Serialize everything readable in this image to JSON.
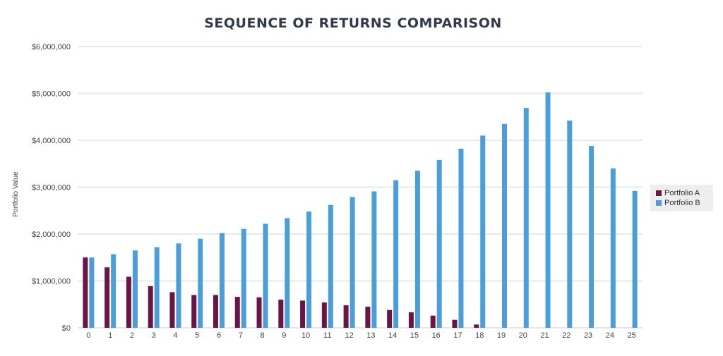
{
  "chart_data": {
    "type": "bar",
    "title": "SEQUENCE OF RETURNS COMPARISON",
    "xlabel": "",
    "ylabel": "Portfolio Value",
    "ylim": [
      0,
      6000000
    ],
    "yticks": [
      "$0",
      "$1,000,000",
      "$2,000,000",
      "$3,000,000",
      "$4,000,000",
      "$5,000,000",
      "$6,000,000"
    ],
    "ytick_values": [
      0,
      1000000,
      2000000,
      3000000,
      4000000,
      5000000,
      6000000
    ],
    "categories": [
      "0",
      "1",
      "2",
      "3",
      "4",
      "5",
      "6",
      "7",
      "8",
      "9",
      "10",
      "11",
      "12",
      "13",
      "14",
      "15",
      "16",
      "17",
      "18",
      "19",
      "20",
      "21",
      "22",
      "23",
      "24",
      "25"
    ],
    "grid": true,
    "legend_position": "right",
    "series": [
      {
        "name": "Portfolio A",
        "color": "#6b1446",
        "values": [
          1500000,
          1290000,
          1090000,
          890000,
          760000,
          700000,
          700000,
          660000,
          650000,
          600000,
          580000,
          540000,
          480000,
          450000,
          380000,
          330000,
          260000,
          170000,
          70000,
          0,
          0,
          0,
          0,
          0,
          0,
          0
        ]
      },
      {
        "name": "Portfolio B",
        "color": "#4a9fdb",
        "values": [
          1500000,
          1570000,
          1650000,
          1720000,
          1800000,
          1900000,
          2020000,
          2110000,
          2220000,
          2340000,
          2480000,
          2620000,
          2790000,
          2910000,
          3150000,
          3350000,
          3580000,
          3820000,
          4100000,
          4350000,
          4690000,
          5020000,
          4420000,
          3880000,
          3400000,
          2920000
        ]
      }
    ]
  }
}
